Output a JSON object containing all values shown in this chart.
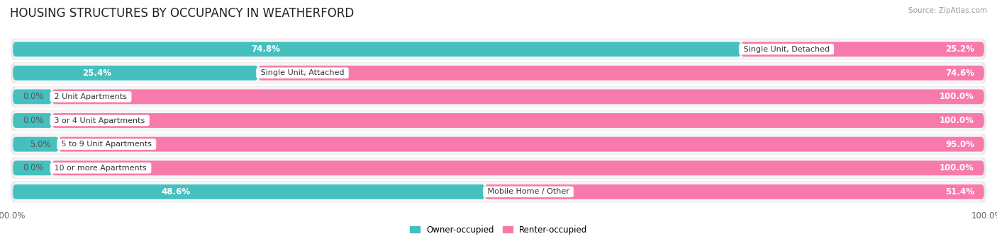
{
  "title": "HOUSING STRUCTURES BY OCCUPANCY IN WEATHERFORD",
  "source": "Source: ZipAtlas.com",
  "categories": [
    "Single Unit, Detached",
    "Single Unit, Attached",
    "2 Unit Apartments",
    "3 or 4 Unit Apartments",
    "5 to 9 Unit Apartments",
    "10 or more Apartments",
    "Mobile Home / Other"
  ],
  "owner_pct": [
    74.8,
    25.4,
    0.0,
    0.0,
    5.0,
    0.0,
    48.6
  ],
  "renter_pct": [
    25.2,
    74.6,
    100.0,
    100.0,
    95.0,
    100.0,
    51.4
  ],
  "owner_color": "#45c0bf",
  "renter_color": "#f87aab",
  "renter_color_dark": "#f0589a",
  "row_bg_color": "#e8e8e8",
  "row_inner_color": "#f5f5f5",
  "title_fontsize": 12,
  "label_fontsize": 8.5,
  "tick_fontsize": 8.5,
  "bar_height": 0.62,
  "figsize": [
    14.06,
    3.41
  ],
  "owner_label_inside_threshold": 15,
  "renter_label_inside_threshold": 15
}
